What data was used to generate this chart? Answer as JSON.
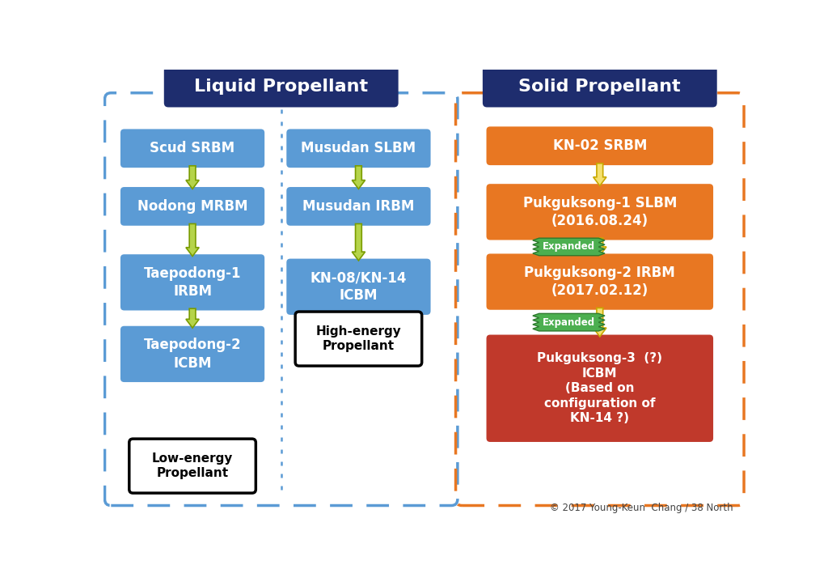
{
  "title_liquid": "Liquid Propellant",
  "title_solid": "Solid Propellant",
  "title_bg": "#1e2d6e",
  "title_text_color": "#ffffff",
  "bg_color": "#ffffff",
  "liquid_border_color": "#5b9bd5",
  "solid_border_color": "#e87722",
  "blue_box_color": "#5b9bd5",
  "blue_box_text": "#ffffff",
  "orange_box_color": "#e87722",
  "orange_box_text": "#ffffff",
  "red_box_color": "#c0392b",
  "red_box_text": "#ffffff",
  "white_box_border": "#000000",
  "white_box_bg": "#ffffff",
  "white_box_text": "#000000",
  "arrow_color_green": "#b5d44a",
  "arrow_edge_green": "#7a9c00",
  "arrow_color_yellow": "#f5e06e",
  "arrow_edge_yellow": "#c8a800",
  "expanded_badge_color": "#4caf50",
  "expanded_badge_text": "#ffffff",
  "copyright": "© 2017 Young-Keun  Chang / 38 North",
  "col1_boxes": [
    {
      "text": "Scud SRBM"
    },
    {
      "text": "Nodong MRBM"
    },
    {
      "text": "Taepodong-1\nIRBM"
    },
    {
      "text": "Taepodong-2\nICBM"
    }
  ],
  "col2_boxes": [
    {
      "text": "Musudan SLBM"
    },
    {
      "text": "Musudan IRBM"
    },
    {
      "text": "KN-08/KN-14\nICBM"
    }
  ],
  "col3_boxes": [
    {
      "text": "KN-02 SRBM",
      "color": "orange"
    },
    {
      "text": "Pukguksong-1 SLBM\n(2016.08.24)",
      "color": "orange"
    },
    {
      "text": "Pukguksong-2 IRBM\n(2017.02.12)",
      "color": "orange"
    },
    {
      "text": "Pukguksong-3  (?)\nICBM\n(Based on\nconfiguration of\nKN-14 ?)",
      "color": "red"
    }
  ],
  "low_energy_text": "Low-energy\nPropellant",
  "high_energy_text": "High-energy\nPropellant"
}
